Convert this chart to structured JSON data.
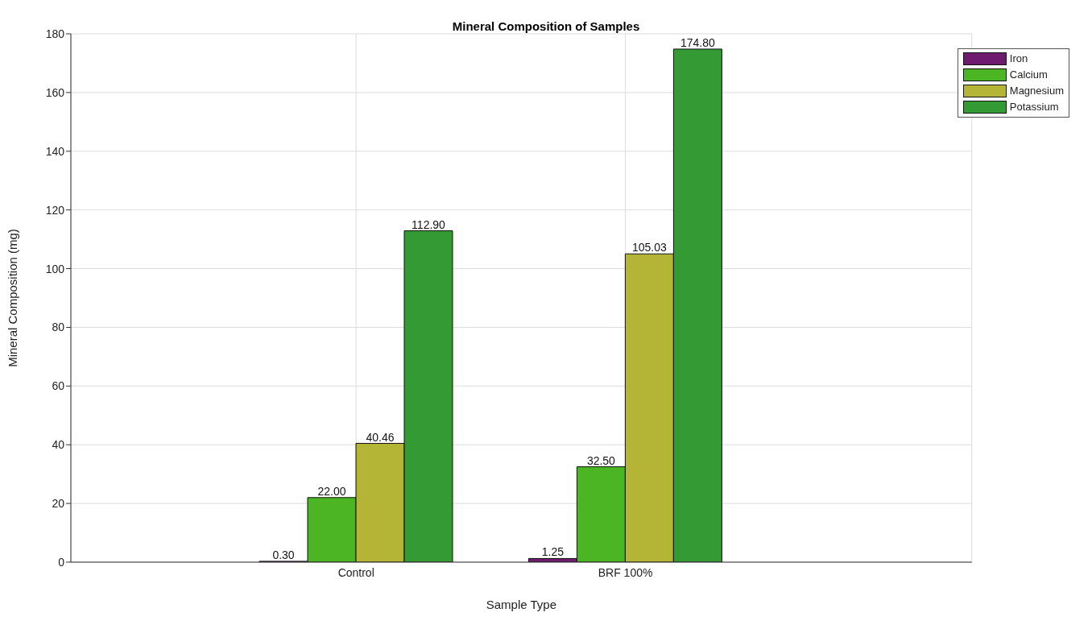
{
  "chart_data": {
    "type": "bar",
    "title": "Mineral Composition of Samples",
    "xlabel": "Sample Type",
    "ylabel": "Mineral Composition (mg)",
    "categories": [
      "Control",
      "BRF 100%"
    ],
    "series": [
      {
        "name": "Iron",
        "color": "#6e1a6e",
        "values": [
          0.3,
          1.25
        ],
        "value_labels": [
          "0.30",
          "1.25"
        ]
      },
      {
        "name": "Calcium",
        "color": "#4cb523",
        "values": [
          22.0,
          32.5
        ],
        "value_labels": [
          "22.00",
          "32.50"
        ]
      },
      {
        "name": "Magnesium",
        "color": "#b4b536",
        "values": [
          40.46,
          105.03
        ],
        "value_labels": [
          "40.46",
          "105.03"
        ]
      },
      {
        "name": "Potassium",
        "color": "#349a34",
        "values": [
          112.9,
          174.8
        ],
        "value_labels": [
          "112.90",
          "174.80"
        ]
      }
    ],
    "ylim": [
      0,
      180
    ],
    "yticks": [
      0,
      20,
      40,
      60,
      80,
      100,
      120,
      140,
      160,
      180
    ],
    "grid": true,
    "legend": "top right"
  }
}
